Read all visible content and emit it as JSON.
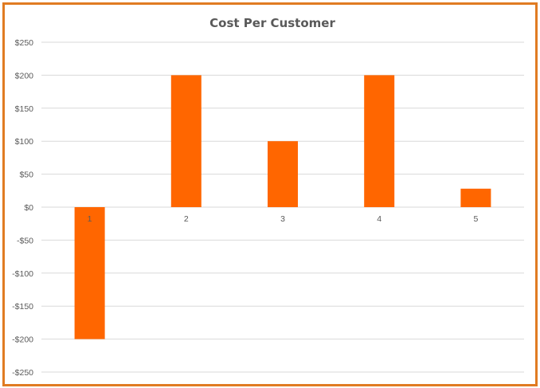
{
  "chart_data": {
    "type": "bar",
    "title": "Cost Per Customer",
    "categories": [
      "1",
      "2",
      "3",
      "4",
      "5"
    ],
    "values": [
      -200,
      200,
      100,
      200,
      28
    ],
    "ylim": [
      -250,
      250
    ],
    "yticks": [
      250,
      200,
      150,
      100,
      50,
      0,
      -50,
      -100,
      -150,
      -200,
      -250
    ],
    "ytick_labels": [
      "$250",
      "$200",
      "$150",
      "$100",
      "$50",
      "$0",
      "-$50",
      "-$100",
      "-$150",
      "-$200",
      "-$250"
    ],
    "grid": true,
    "legend": "none",
    "bar_color": "#ff6600",
    "frame_color": "#e07b22"
  }
}
